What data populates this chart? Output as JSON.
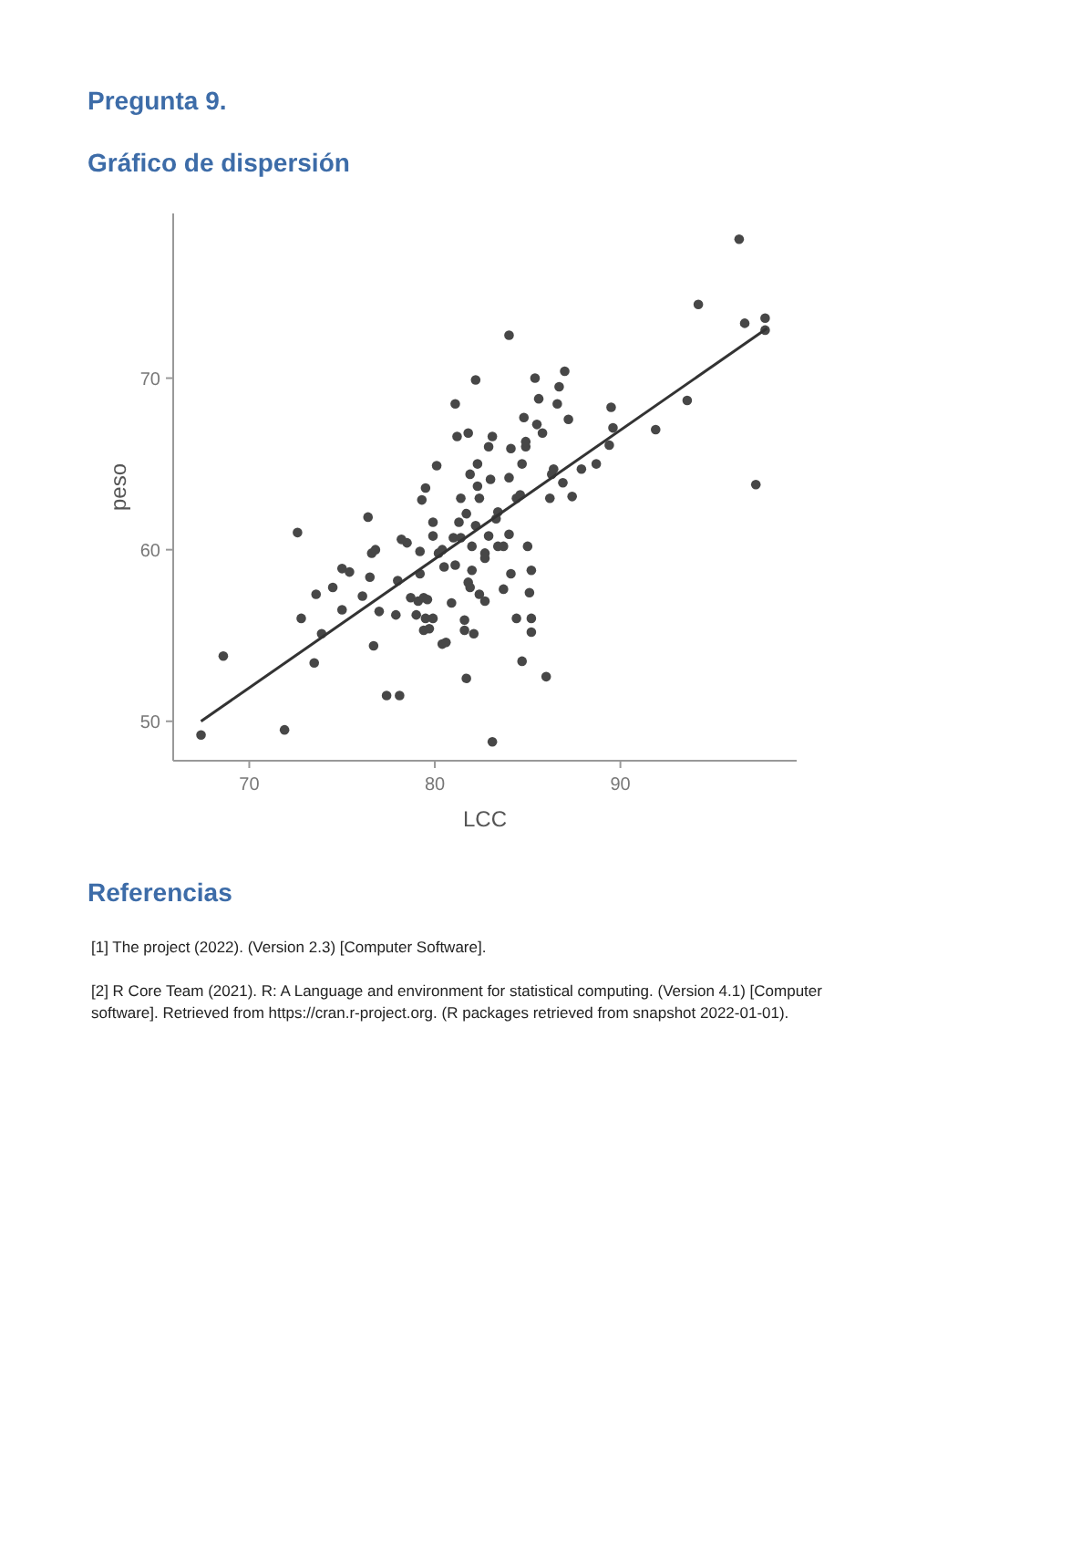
{
  "chart_data": {
    "type": "scatter",
    "title": "Pregunta 9.",
    "subtitle": "Gráfico de dispersión",
    "xlabel": "LCC",
    "ylabel": "peso",
    "xlim": [
      65.9,
      99.5
    ],
    "ylim": [
      47.7,
      79.6
    ],
    "xticks": [
      70,
      80,
      90
    ],
    "yticks": [
      50,
      60,
      70
    ],
    "grid": false,
    "marker": "circle",
    "series": [
      {
        "color": "#474747",
        "x": [
          67.4,
          68.6,
          72.6,
          72.8,
          71.9,
          73.6,
          73.5,
          73.9,
          74.5,
          75.0,
          75.4,
          75.0,
          76.1,
          76.4,
          76.6,
          76.8,
          76.7,
          76.5,
          77.0,
          77.4,
          78.1,
          78.0,
          77.9,
          78.5,
          78.2,
          78.7,
          79.0,
          79.1,
          79.2,
          79.2,
          79.4,
          79.4,
          79.5,
          79.7,
          79.9,
          79.6,
          79.9,
          79.9,
          79.3,
          79.5,
          80.1,
          80.2,
          80.4,
          80.5,
          80.4,
          80.6,
          80.9,
          81.0,
          81.1,
          81.1,
          81.2,
          81.3,
          81.4,
          81.7,
          81.6,
          81.4,
          81.6,
          81.7,
          81.8,
          81.8,
          81.9,
          82.0,
          82.0,
          81.9,
          82.2,
          82.3,
          82.2,
          82.1,
          82.3,
          82.4,
          82.4,
          82.7,
          82.7,
          82.9,
          82.9,
          82.7,
          83.0,
          83.1,
          83.1,
          83.3,
          83.4,
          83.4,
          83.7,
          83.7,
          84.0,
          84.0,
          84.1,
          84.0,
          84.1,
          84.4,
          84.6,
          84.4,
          84.7,
          84.7,
          84.8,
          84.9,
          84.9,
          85.0,
          85.1,
          85.2,
          85.2,
          85.2,
          85.4,
          85.5,
          85.6,
          85.8,
          86.0,
          86.2,
          86.3,
          86.4,
          86.6,
          86.7,
          86.9,
          87.0,
          87.2,
          87.4,
          87.9,
          88.7,
          89.4,
          89.5,
          89.6,
          91.9,
          93.6,
          94.2,
          96.4,
          96.7,
          97.3,
          97.8,
          97.8
        ],
        "values": [
          49.2,
          53.8,
          61.0,
          56.0,
          49.5,
          57.4,
          53.4,
          55.1,
          57.8,
          56.5,
          58.7,
          58.9,
          57.3,
          61.9,
          59.8,
          60.0,
          54.4,
          58.4,
          56.4,
          51.5,
          51.5,
          58.2,
          56.2,
          60.4,
          60.6,
          57.2,
          56.2,
          57.0,
          59.9,
          58.6,
          57.2,
          55.3,
          56.0,
          55.4,
          56.0,
          57.1,
          60.8,
          61.6,
          62.9,
          63.6,
          64.9,
          59.8,
          60.0,
          59.0,
          54.5,
          54.6,
          56.9,
          60.7,
          68.5,
          59.1,
          66.6,
          61.6,
          63.0,
          62.1,
          55.9,
          60.7,
          55.3,
          52.5,
          58.1,
          66.8,
          64.4,
          60.2,
          58.8,
          57.8,
          69.9,
          63.7,
          61.4,
          55.1,
          65.0,
          63.0,
          57.4,
          57.0,
          59.8,
          60.8,
          66.0,
          59.5,
          64.1,
          66.6,
          48.8,
          61.8,
          62.2,
          60.2,
          57.7,
          60.2,
          72.5,
          64.2,
          65.9,
          60.9,
          58.6,
          63.0,
          63.2,
          56.0,
          53.5,
          65.0,
          67.7,
          66.0,
          66.3,
          60.2,
          57.5,
          58.8,
          55.2,
          56.0,
          70.0,
          67.3,
          68.8,
          66.8,
          52.6,
          63.0,
          64.4,
          64.7,
          68.5,
          69.5,
          63.9,
          70.4,
          67.6,
          63.1,
          64.7,
          65.0,
          66.1,
          68.3,
          67.1,
          67.0,
          68.7,
          74.3,
          78.1,
          73.2,
          63.8,
          73.5,
          72.8
        ]
      },
      {
        "type": "line",
        "marker": "none",
        "color": "#333333",
        "x": [
          67.4,
          97.9
        ],
        "values": [
          50.0,
          72.9
        ]
      }
    ],
    "annotations": [
      "Referencias",
      "[1] The project (2022). (Version 2.3) [Computer Software].",
      "[2] R Core Team (2021). R: A Language and environment for statistical computing. (Version 4.1) [Computer software]. Retrieved from https://cran.r-project.org. (R packages retrieved from snapshot 2022-01-01)."
    ]
  }
}
